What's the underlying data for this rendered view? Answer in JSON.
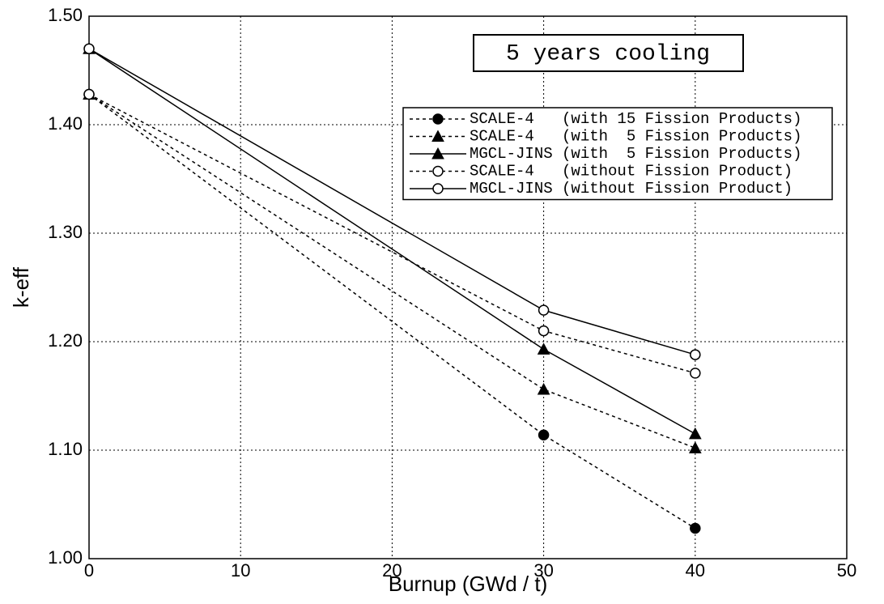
{
  "chart_data": {
    "type": "line",
    "annotation": "5 years cooling",
    "xlabel": "Burnup (GWd / t)",
    "ylabel": "k-eff",
    "x": [
      0,
      30,
      40
    ],
    "xlim": [
      0,
      50
    ],
    "xticks": [
      0,
      10,
      20,
      30,
      40,
      50
    ],
    "ylim": [
      1.0,
      1.5
    ],
    "yticks": [
      {
        "value": 1.0,
        "label": "1.00"
      },
      {
        "value": 1.1,
        "label": "1.10"
      },
      {
        "value": 1.2,
        "label": "1.20"
      },
      {
        "value": 1.3,
        "label": "1.30"
      },
      {
        "value": 1.4,
        "label": "1.40"
      },
      {
        "value": 1.5,
        "label": "1.50"
      }
    ],
    "grid": true,
    "series": [
      {
        "name": "SCALE-4   (with 15 Fission Products)",
        "color": "#000000",
        "marker": "filled-circle",
        "dash": true,
        "values": [
          1.428,
          1.114,
          1.028
        ]
      },
      {
        "name": "SCALE-4   (with  5 Fission Products)",
        "color": "#000000",
        "marker": "filled-triangle",
        "dash": true,
        "values": [
          1.428,
          1.156,
          1.102
        ]
      },
      {
        "name": "MGCL-JINS (with  5 Fission Products)",
        "color": "#000000",
        "marker": "filled-triangle",
        "dash": false,
        "values": [
          1.47,
          1.193,
          1.115
        ]
      },
      {
        "name": "SCALE-4   (without Fission Product)",
        "color": "#000000",
        "marker": "open-circle",
        "dash": true,
        "values": [
          1.428,
          1.21,
          1.171
        ]
      },
      {
        "name": "MGCL-JINS (without Fission Product)",
        "color": "#000000",
        "marker": "open-circle",
        "dash": false,
        "values": [
          1.47,
          1.229,
          1.188
        ]
      }
    ]
  }
}
